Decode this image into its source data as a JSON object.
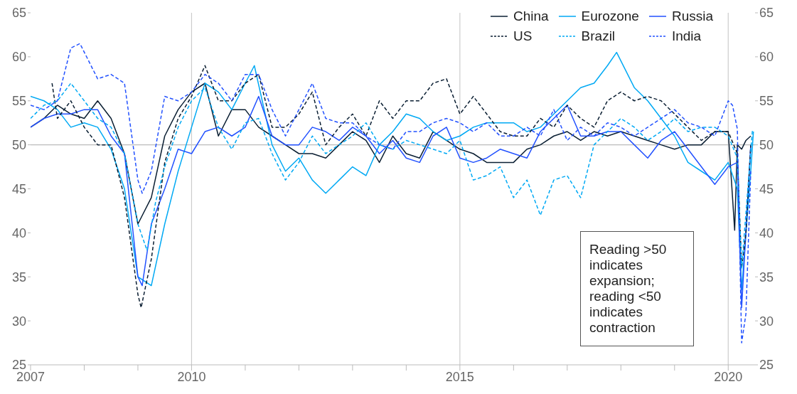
{
  "chart_data": {
    "type": "line",
    "xlim": [
      2007,
      2020.5
    ],
    "ylim": [
      25,
      65
    ],
    "yticks": [
      25,
      30,
      35,
      40,
      45,
      50,
      55,
      60,
      65
    ],
    "y2lim": [
      25,
      65
    ],
    "y2ticks": [
      25,
      30,
      35,
      40,
      45,
      50,
      55,
      60,
      65
    ],
    "xticks": [
      2007,
      {
        "value": 2008,
        "label": null
      },
      {
        "value": 2009,
        "label": null
      },
      2010,
      {
        "value": 2011,
        "label": null
      },
      {
        "value": 2012,
        "label": null
      },
      {
        "value": 2013,
        "label": null
      },
      {
        "value": 2014,
        "label": null
      },
      2015,
      {
        "value": 2016,
        "label": null
      },
      {
        "value": 2017,
        "label": null
      },
      {
        "value": 2018,
        "label": null
      },
      {
        "value": 2019,
        "label": null
      },
      2020
    ],
    "legend": "top right",
    "ref_lines": [
      {
        "axis": "y",
        "value": 50,
        "color": "#bbbbbb"
      },
      {
        "axis": "x",
        "value": 2010,
        "color": "#cccccc"
      },
      {
        "axis": "x",
        "value": 2015,
        "color": "#cccccc"
      },
      {
        "axis": "x",
        "value": 2020,
        "color": "#cccccc"
      }
    ],
    "annotations": [
      "Reading >50 indicates expansion; reading <50 indicates contraction"
    ],
    "series": [
      {
        "name": "China",
        "color": "#0b1f33",
        "line_style": "solid",
        "x": [
          2007,
          2007.25,
          2007.5,
          2007.75,
          2008,
          2008.25,
          2008.5,
          2008.75,
          2009,
          2009.25,
          2009.5,
          2009.75,
          2010,
          2010.25,
          2010.5,
          2010.75,
          2011,
          2011.25,
          2011.5,
          2011.75,
          2012,
          2012.25,
          2012.5,
          2012.75,
          2013,
          2013.25,
          2013.5,
          2013.75,
          2014,
          2014.25,
          2014.5,
          2014.75,
          2015,
          2015.25,
          2015.5,
          2015.75,
          2016,
          2016.25,
          2016.5,
          2016.75,
          2017,
          2017.25,
          2017.5,
          2017.75,
          2018,
          2018.25,
          2018.5,
          2018.75,
          2019,
          2019.25,
          2019.5,
          2019.75,
          2020,
          2020.12,
          2020.17,
          2020.25,
          2020.33,
          2020.42
        ],
        "values": [
          52,
          53,
          54.5,
          53.5,
          53,
          55,
          53,
          49,
          41,
          44,
          51,
          54,
          56,
          57,
          51,
          54,
          54,
          52,
          51,
          50,
          49,
          49,
          48.5,
          50,
          51.5,
          50.5,
          48,
          51,
          49,
          48.5,
          51.5,
          50.5,
          49.5,
          49,
          48,
          48,
          48,
          49.5,
          50,
          51,
          51.5,
          50.5,
          51.5,
          51,
          51.5,
          51,
          50.5,
          50,
          49.5,
          50,
          50,
          51.5,
          51.5,
          40.3,
          50,
          49.5,
          50.5,
          51
        ]
      },
      {
        "name": "Eurozone",
        "color": "#00a9f4",
        "line_style": "solid",
        "x": [
          2007,
          2007.25,
          2007.5,
          2007.75,
          2008,
          2008.25,
          2008.5,
          2008.75,
          2009,
          2009.25,
          2009.5,
          2009.75,
          2010,
          2010.25,
          2010.5,
          2010.75,
          2011,
          2011.17,
          2011.5,
          2011.75,
          2012,
          2012.25,
          2012.5,
          2012.75,
          2013,
          2013.25,
          2013.5,
          2013.75,
          2014,
          2014.25,
          2014.5,
          2014.75,
          2015,
          2015.25,
          2015.5,
          2015.75,
          2016,
          2016.25,
          2016.5,
          2016.75,
          2017,
          2017.25,
          2017.5,
          2017.75,
          2017.92,
          2018.25,
          2018.5,
          2018.75,
          2019,
          2019.25,
          2019.5,
          2019.75,
          2020,
          2020.17,
          2020.25,
          2020.42,
          2020.47
        ],
        "values": [
          55.5,
          55,
          54,
          52,
          52.5,
          52,
          49.5,
          45,
          35,
          34,
          41,
          47,
          52,
          57,
          56,
          54,
          57,
          59,
          50,
          47,
          48.5,
          46,
          44.5,
          46,
          47.5,
          46.5,
          50,
          51.5,
          53.5,
          53,
          51.5,
          50.5,
          51,
          52,
          52.5,
          52.5,
          52.5,
          51.5,
          52,
          53.5,
          55,
          56.5,
          57,
          59,
          60.5,
          56.5,
          55,
          53,
          51,
          48,
          47,
          46,
          48,
          45,
          33.5,
          47,
          51.5
        ]
      },
      {
        "name": "Russia",
        "color": "#2251ff",
        "line_style": "solid",
        "x": [
          2007,
          2007.25,
          2007.5,
          2007.75,
          2008,
          2008.25,
          2008.5,
          2008.75,
          2009,
          2009.08,
          2009.25,
          2009.5,
          2009.75,
          2010,
          2010.25,
          2010.5,
          2010.75,
          2011,
          2011.25,
          2011.5,
          2011.75,
          2012,
          2012.25,
          2012.5,
          2012.75,
          2013,
          2013.25,
          2013.5,
          2013.75,
          2014,
          2014.25,
          2014.5,
          2014.75,
          2015,
          2015.25,
          2015.5,
          2015.75,
          2016,
          2016.25,
          2016.5,
          2016.75,
          2017,
          2017.25,
          2017.5,
          2017.75,
          2018,
          2018.25,
          2018.5,
          2018.75,
          2019,
          2019.25,
          2019.5,
          2019.75,
          2020,
          2020.17,
          2020.25,
          2020.42
        ],
        "values": [
          52,
          53,
          53.5,
          53.5,
          54,
          54,
          51,
          49,
          35,
          34,
          41,
          45,
          49.5,
          49,
          51.5,
          52,
          51,
          52,
          55.5,
          51,
          50,
          50,
          52,
          51.5,
          50.5,
          52,
          51,
          49,
          50.5,
          48.5,
          48,
          51,
          52,
          48.5,
          48,
          48.5,
          49.5,
          49,
          48.5,
          51.5,
          53,
          54.5,
          51,
          51,
          51.5,
          51.5,
          50,
          48.5,
          50.5,
          51.5,
          49.5,
          47.5,
          45.5,
          47.5,
          48,
          31.5,
          50
        ]
      },
      {
        "name": "US",
        "color": "#0b1f33",
        "line_style": "dashed",
        "x": [
          2007.4,
          2007.5,
          2007.75,
          2008,
          2008.25,
          2008.5,
          2008.75,
          2009,
          2009.06,
          2009.25,
          2009.5,
          2009.75,
          2010,
          2010.25,
          2010.5,
          2010.75,
          2011,
          2011.25,
          2011.5,
          2011.75,
          2012,
          2012.25,
          2012.5,
          2012.75,
          2013,
          2013.25,
          2013.5,
          2013.75,
          2014,
          2014.25,
          2014.5,
          2014.75,
          2015,
          2015.25,
          2015.5,
          2015.75,
          2016,
          2016.25,
          2016.5,
          2016.75,
          2017,
          2017.25,
          2017.5,
          2017.75,
          2018,
          2018.25,
          2018.5,
          2018.75,
          2019,
          2019.25,
          2019.5,
          2019.75,
          2020,
          2020.17,
          2020.25,
          2020.33,
          2020.42
        ],
        "values": [
          57,
          53,
          55,
          52,
          50,
          50,
          44,
          33,
          31.5,
          37,
          48,
          53,
          55.5,
          59,
          55,
          55,
          57,
          58,
          52,
          52,
          53.5,
          56,
          50,
          52,
          53.5,
          51,
          55,
          53,
          55,
          55,
          57,
          57.5,
          53.5,
          55.5,
          53.5,
          51.5,
          51,
          51,
          53,
          52,
          54.5,
          53,
          52,
          55,
          56,
          55,
          55.5,
          55,
          53.5,
          52,
          50.5,
          51.5,
          51.5,
          49,
          36,
          40,
          50
        ]
      },
      {
        "name": "Brazil",
        "color": "#00a9f4",
        "line_style": "dashed",
        "x": [
          2007,
          2007.25,
          2007.5,
          2007.75,
          2008,
          2008.25,
          2008.5,
          2008.75,
          2009,
          2009.17,
          2009.33,
          2009.5,
          2009.75,
          2010,
          2010.25,
          2010.5,
          2010.75,
          2011,
          2011.25,
          2011.5,
          2011.75,
          2012,
          2012.25,
          2012.5,
          2012.75,
          2013,
          2013.25,
          2013.5,
          2013.75,
          2014,
          2014.25,
          2014.5,
          2014.75,
          2015,
          2015.25,
          2015.5,
          2015.75,
          2016,
          2016.25,
          2016.5,
          2016.75,
          2017,
          2017.25,
          2017.5,
          2017.75,
          2018,
          2018.25,
          2018.5,
          2018.75,
          2019,
          2019.25,
          2019.5,
          2019.75,
          2020,
          2020.17,
          2020.25,
          2020.45
        ],
        "values": [
          53,
          54.5,
          55,
          57,
          55,
          53,
          52,
          49,
          41,
          38,
          43.5,
          47.5,
          52,
          55,
          56.5,
          52,
          49.5,
          52.5,
          53,
          49,
          46,
          48,
          51,
          49,
          50,
          51,
          52.5,
          50,
          49.5,
          50.5,
          50,
          49.5,
          49,
          50.5,
          46,
          46.5,
          47.5,
          44,
          46,
          42,
          46,
          46.5,
          44,
          50,
          51.5,
          53,
          52,
          50.5,
          51.5,
          53,
          51.5,
          52,
          52,
          51,
          48.5,
          36,
          51.6
        ]
      },
      {
        "name": "India",
        "color": "#2251ff",
        "line_style": "dashed",
        "x": [
          2007,
          2007.25,
          2007.5,
          2007.75,
          2007.92,
          2008.25,
          2008.5,
          2008.75,
          2009,
          2009.08,
          2009.25,
          2009.5,
          2009.75,
          2010,
          2010.25,
          2010.5,
          2010.75,
          2011,
          2011.25,
          2011.5,
          2011.75,
          2012,
          2012.25,
          2012.5,
          2012.75,
          2013,
          2013.25,
          2013.5,
          2013.75,
          2014,
          2014.25,
          2014.5,
          2014.75,
          2015,
          2015.25,
          2015.5,
          2015.75,
          2016,
          2016.25,
          2016.5,
          2016.75,
          2017,
          2017.25,
          2017.5,
          2017.75,
          2018,
          2018.25,
          2018.5,
          2018.75,
          2019,
          2019.25,
          2019.5,
          2019.75,
          2020,
          2020.08,
          2020.17,
          2020.25,
          2020.33,
          2020.42
        ],
        "values": [
          54.5,
          54,
          55,
          61,
          61.5,
          57.5,
          58,
          57,
          46,
          44.5,
          47,
          55.5,
          55,
          56,
          58,
          57,
          55,
          58,
          58,
          54,
          51,
          54,
          57,
          53,
          52.5,
          52.5,
          51,
          50,
          49.5,
          51.5,
          51.5,
          52.5,
          53,
          52.5,
          51.5,
          52.5,
          51,
          51,
          52,
          51,
          54,
          50.5,
          52,
          51,
          52.5,
          52,
          51,
          52,
          53,
          54,
          52.5,
          52,
          51,
          55,
          54.5,
          51.8,
          27.5,
          30.8,
          47
        ]
      }
    ]
  }
}
